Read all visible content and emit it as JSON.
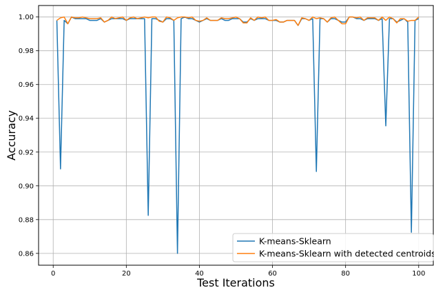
{
  "chart_data": {
    "type": "line",
    "title": "",
    "xlabel": "Test Iterations",
    "ylabel": "Accuracy",
    "xlim": [
      -4,
      104
    ],
    "ylim": [
      0.853,
      1.0068
    ],
    "xticks": [
      0,
      20,
      40,
      60,
      80,
      100
    ],
    "yticks": [
      0.86,
      0.88,
      0.9,
      0.92,
      0.94,
      0.96,
      0.98,
      1.0
    ],
    "xtick_labels": [
      "0",
      "20",
      "40",
      "60",
      "80",
      "100"
    ],
    "ytick_labels": [
      "0.86",
      "0.88",
      "0.90",
      "0.92",
      "0.94",
      "0.96",
      "0.98",
      "1.00"
    ],
    "grid": true,
    "legend_position": "lower-right",
    "series": [
      {
        "name": "K-means-Sklearn",
        "color": "#1f77b4",
        "x": [
          1,
          2,
          3,
          4,
          5,
          6,
          7,
          8,
          9,
          10,
          11,
          12,
          13,
          14,
          15,
          16,
          17,
          18,
          19,
          20,
          21,
          22,
          23,
          24,
          25,
          26,
          27,
          28,
          29,
          30,
          31,
          32,
          33,
          34,
          35,
          36,
          37,
          38,
          39,
          40,
          41,
          42,
          43,
          44,
          45,
          46,
          47,
          48,
          49,
          50,
          51,
          52,
          53,
          54,
          55,
          56,
          57,
          58,
          59,
          60,
          61,
          62,
          63,
          64,
          65,
          66,
          67,
          68,
          69,
          70,
          71,
          72,
          73,
          74,
          75,
          76,
          77,
          78,
          79,
          80,
          81,
          82,
          83,
          84,
          85,
          86,
          87,
          88,
          89,
          90,
          91,
          92,
          93,
          94,
          95,
          96,
          97,
          98,
          99,
          100
        ],
        "y": [
          0.998,
          0.91,
          0.998,
          0.996,
          1.0,
          0.999,
          0.999,
          0.999,
          0.999,
          0.998,
          0.998,
          0.998,
          0.999,
          0.997,
          0.998,
          0.999,
          0.999,
          0.999,
          0.999,
          0.998,
          0.999,
          0.999,
          0.999,
          0.999,
          0.999,
          0.8825,
          0.999,
          0.999,
          0.998,
          0.997,
          0.999,
          0.999,
          0.998,
          0.86,
          0.999,
          1.0,
          0.999,
          0.999,
          0.998,
          0.997,
          0.998,
          0.999,
          0.998,
          0.998,
          0.998,
          0.999,
          0.998,
          0.998,
          0.999,
          0.999,
          0.999,
          0.997,
          0.997,
          0.999,
          0.998,
          0.999,
          0.999,
          0.999,
          0.998,
          0.998,
          0.998,
          0.997,
          0.997,
          0.998,
          0.998,
          0.998,
          0.995,
          0.999,
          0.999,
          0.998,
          0.999,
          0.9085,
          0.999,
          0.999,
          0.997,
          0.999,
          0.999,
          0.998,
          0.997,
          0.997,
          1.0,
          1.0,
          0.999,
          0.999,
          0.998,
          0.999,
          0.999,
          0.999,
          0.998,
          0.999,
          0.9355,
          0.999,
          0.999,
          0.997,
          0.998,
          0.999,
          0.997,
          0.8725,
          0.998,
          0.999
        ]
      },
      {
        "name": "K-means-Sklearn with detected centroids",
        "color": "#ff7f0e",
        "x": [
          1,
          2,
          3,
          4,
          5,
          6,
          7,
          8,
          9,
          10,
          11,
          12,
          13,
          14,
          15,
          16,
          17,
          18,
          19,
          20,
          21,
          22,
          23,
          24,
          25,
          26,
          27,
          28,
          29,
          30,
          31,
          32,
          33,
          34,
          35,
          36,
          37,
          38,
          39,
          40,
          41,
          42,
          43,
          44,
          45,
          46,
          47,
          48,
          49,
          50,
          51,
          52,
          53,
          54,
          55,
          56,
          57,
          58,
          59,
          60,
          61,
          62,
          63,
          64,
          65,
          66,
          67,
          68,
          69,
          70,
          71,
          72,
          73,
          74,
          75,
          76,
          77,
          78,
          79,
          80,
          81,
          82,
          83,
          84,
          85,
          86,
          87,
          88,
          89,
          90,
          91,
          92,
          93,
          94,
          95,
          96,
          97,
          98,
          99,
          100
        ],
        "y": [
          0.998,
          0.9995,
          1.0,
          0.996,
          1.0,
          0.9995,
          0.9995,
          1.0,
          0.9995,
          0.999,
          0.999,
          0.999,
          0.9995,
          0.997,
          0.998,
          1.0,
          0.999,
          0.9995,
          1.0,
          0.998,
          0.9995,
          1.0,
          0.999,
          0.9995,
          1.0,
          0.9995,
          1.0,
          1.0,
          0.9975,
          0.997,
          1.0,
          0.9995,
          0.998,
          0.9995,
          1.0,
          1.0,
          0.9995,
          1.0,
          0.998,
          0.9975,
          0.998,
          0.9995,
          0.998,
          0.998,
          0.998,
          0.9995,
          0.999,
          0.999,
          0.9995,
          1.0,
          0.999,
          0.9965,
          0.9965,
          0.9995,
          0.998,
          1.0,
          0.9995,
          1.0,
          0.998,
          0.998,
          0.9985,
          0.997,
          0.997,
          0.998,
          0.998,
          0.998,
          0.995,
          0.9995,
          0.999,
          0.998,
          1.0,
          0.999,
          0.9995,
          0.999,
          0.997,
          0.9995,
          1.0,
          0.998,
          0.996,
          0.996,
          1.0,
          1.0,
          0.9995,
          1.0,
          0.998,
          0.9995,
          0.9995,
          0.9995,
          0.998,
          1.0,
          0.998,
          1.0,
          0.999,
          0.9965,
          0.999,
          0.999,
          0.9975,
          0.998,
          0.998,
          1.0
        ]
      }
    ]
  }
}
